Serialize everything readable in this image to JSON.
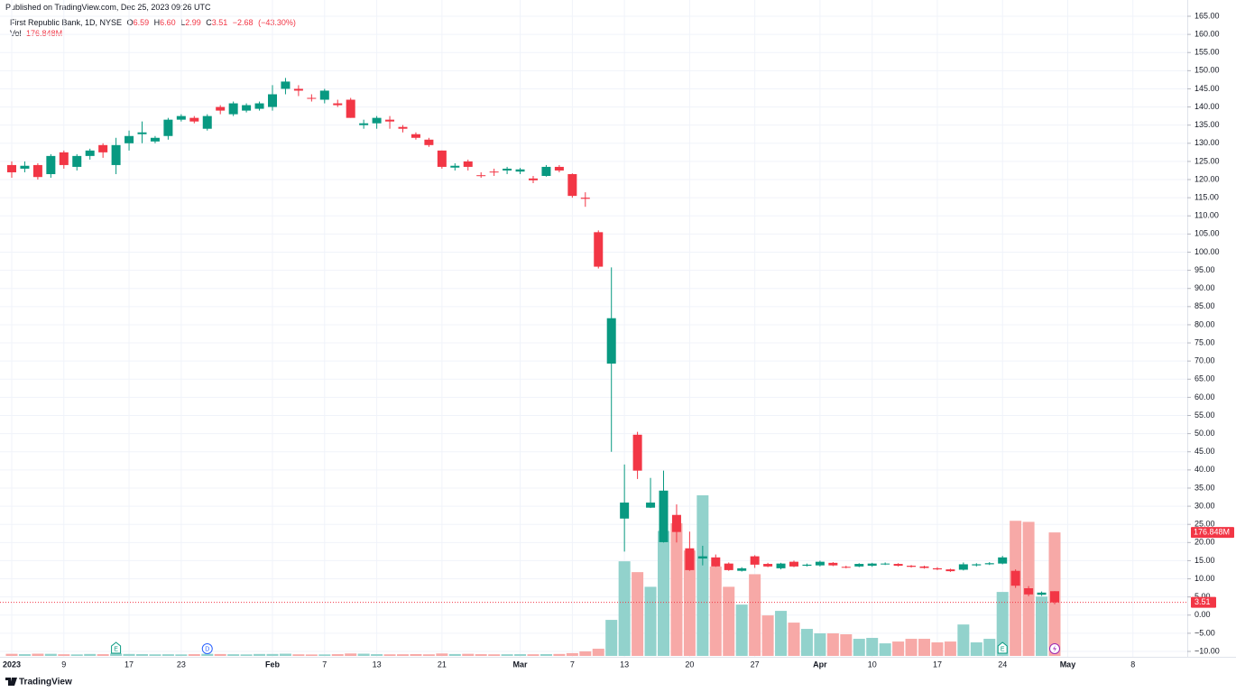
{
  "published": "Published on TradingView.com, Dec 25, 2023 09:26 UTC",
  "brand": "TradingView",
  "chart_data": {
    "type": "candlestick",
    "title": "First Republic Bank, 1D, NYSE",
    "legend_letters": [
      "O",
      "H",
      "L",
      "C"
    ],
    "legend_values": [
      {
        "value": 6.59,
        "label": "6.59"
      },
      {
        "value": 6.6,
        "label": "6.60"
      },
      {
        "value": 2.99,
        "label": "2.99"
      },
      {
        "value": 3.51,
        "label": "3.51"
      }
    ],
    "change": {
      "value": -2.68,
      "label": "−2.68"
    },
    "change_percent": {
      "value": -43.3,
      "label": "(−43.30%)"
    },
    "categories": [
      "2023",
      null,
      null,
      null,
      "9",
      null,
      null,
      null,
      null,
      "17",
      null,
      null,
      null,
      "23",
      null,
      null,
      null,
      null,
      null,
      null,
      "Feb",
      null,
      null,
      null,
      "7",
      null,
      null,
      null,
      "13",
      null,
      null,
      null,
      null,
      "21",
      null,
      null,
      null,
      null,
      null,
      "Mar",
      null,
      null,
      null,
      "7",
      null,
      null,
      null,
      "13",
      null,
      null,
      null,
      null,
      "20",
      null,
      null,
      null,
      null,
      "27",
      null,
      null,
      null,
      null,
      "Apr",
      null,
      null,
      null,
      "10",
      null,
      null,
      null,
      null,
      "17",
      null,
      null,
      null,
      null,
      "24",
      null,
      null,
      null,
      null,
      "May",
      null,
      null,
      null,
      null,
      "8"
    ],
    "open": [
      124,
      123,
      124,
      121.5,
      127.5,
      123.5,
      126.5,
      129.5,
      124,
      130,
      132.5,
      130.5,
      132,
      136.5,
      137,
      134,
      140,
      138,
      139,
      139.5,
      140,
      145,
      145,
      142.5,
      142,
      141,
      142,
      135,
      135.5,
      136.5,
      134.5,
      132.5,
      131,
      128,
      123.3,
      125,
      121.2,
      122.2,
      122.5,
      122.2,
      120.3,
      121,
      123.5,
      121.5,
      115,
      105.5,
      69.3,
      26.6,
      49.7,
      29.6,
      20.1,
      27.6,
      18.4,
      15.6,
      15.9,
      14.2,
      12.2,
      16.2,
      14.1,
      12.9,
      14.7,
      13.6,
      13.7,
      14.4,
      13.3,
      13.4,
      13.6,
      14,
      14.1,
      13.6,
      13.4,
      12.9,
      12.6,
      12.5,
      13.7,
      14,
      14.2,
      12.2,
      7.4,
      5.6,
      6.59,
      null,
      null,
      null,
      null,
      null,
      null
    ],
    "high": [
      125,
      125,
      124.5,
      127,
      128,
      127,
      128.5,
      130,
      131.5,
      133.5,
      136,
      132,
      137,
      138,
      137.5,
      138,
      140.5,
      141.5,
      141,
      141.5,
      146,
      148,
      146,
      143.5,
      145,
      142,
      142.5,
      136.5,
      137.5,
      137.5,
      135,
      133,
      131.5,
      128,
      124.5,
      125.5,
      122,
      123,
      123.5,
      123.2,
      121,
      124,
      124,
      121.7,
      116.5,
      106,
      95.8,
      41.5,
      50.5,
      37.8,
      39.8,
      30.5,
      23,
      19.1,
      16.7,
      14.5,
      13.2,
      16.5,
      14.4,
      14.4,
      15,
      14.2,
      15,
      14.6,
      13.6,
      14.3,
      14.4,
      14.5,
      14.3,
      13.8,
      13.6,
      13.2,
      12.8,
      14.5,
      14.3,
      14.6,
      16.3,
      12.6,
      8,
      6.5,
      6.6,
      null,
      null,
      null,
      null,
      null,
      null
    ],
    "low": [
      120.5,
      122,
      120,
      120.5,
      123,
      122.5,
      125.5,
      126,
      121.5,
      128,
      130,
      130,
      131,
      136,
      135.5,
      133.5,
      138,
      137.5,
      138.5,
      139,
      139,
      143.5,
      143,
      141.5,
      141,
      140,
      137,
      134,
      134,
      134,
      133,
      131,
      129,
      123,
      122.5,
      122.5,
      120.5,
      121,
      121.5,
      121.5,
      119,
      120.8,
      122,
      115,
      112.5,
      95.5,
      45,
      17.5,
      37.5,
      29.5,
      20,
      20,
      12.2,
      13.7,
      13.3,
      12.2,
      12,
      13,
      13.2,
      12.6,
      13.2,
      13.4,
      13.4,
      13.5,
      12.9,
      13.2,
      13.3,
      13.8,
      13.4,
      13.1,
      12.8,
      12.4,
      11.9,
      12.3,
      13.4,
      13.8,
      14,
      7.5,
      5.2,
      5.3,
      2.99,
      null,
      null,
      null,
      null,
      null,
      null
    ],
    "close": [
      122,
      123.8,
      120.7,
      126.5,
      124,
      126.5,
      128,
      127.5,
      129.5,
      132,
      133,
      131.5,
      136.5,
      137.5,
      136,
      137.5,
      139,
      141,
      140.5,
      141,
      143.5,
      147,
      144.5,
      142.3,
      144.5,
      140.5,
      137,
      135.5,
      137,
      136,
      134,
      131.5,
      129.5,
      123.5,
      123.8,
      123.5,
      121,
      122,
      123,
      122.8,
      119.8,
      123.5,
      122.5,
      115.5,
      114.7,
      96,
      81.8,
      31,
      39.8,
      31,
      34.3,
      22.9,
      12.4,
      16.2,
      13.4,
      12.4,
      12.9,
      13.9,
      13.4,
      14.2,
      13.4,
      13.9,
      14.7,
      13.7,
      13.1,
      14.1,
      14.2,
      14.2,
      13.6,
      13.3,
      13,
      12.6,
      12.1,
      14,
      14,
      14.3,
      15.9,
      8.1,
      5.7,
      6.2,
      3.51,
      null,
      null,
      null,
      null,
      null,
      null
    ],
    "volume": {
      "name": "Vol",
      "values": [
        3,
        2.5,
        3.2,
        3,
        2.4,
        2.2,
        2.8,
        2.5,
        3.5,
        2.8,
        2.6,
        2.3,
        2.4,
        2.2,
        2.5,
        3,
        2.7,
        2.4,
        2.2,
        2.8,
        2.8,
        3.2,
        2.3,
        2.1,
        2.2,
        2.5,
        3.5,
        3.2,
        2.5,
        2.3,
        2.4,
        2.6,
        2.3,
        3.5,
        2.7,
        3,
        2.5,
        2.3,
        2.4,
        2.5,
        2.4,
        2.6,
        2.8,
        4,
        6.5,
        10.3,
        51.6,
        135.5,
        120,
        99,
        179,
        190,
        151,
        230,
        128,
        99,
        73.5,
        117,
        58,
        64.5,
        47.7,
        38.7,
        32.3,
        32.3,
        31,
        24.5,
        25.8,
        18,
        20.6,
        24.5,
        24.5,
        19.4,
        20.6,
        45,
        19.4,
        24.5,
        91.6,
        193.5,
        192,
        85,
        176.848,
        null,
        null,
        null,
        null,
        null,
        null
      ],
      "value_labels": [
        null,
        null,
        null,
        null,
        null,
        null,
        null,
        null,
        null,
        null,
        null,
        null,
        null,
        null,
        null,
        null,
        null,
        null,
        null,
        null,
        null,
        null,
        null,
        null,
        null,
        null,
        null,
        null,
        null,
        null,
        null,
        null,
        null,
        null,
        null,
        null,
        null,
        null,
        null,
        null,
        null,
        null,
        null,
        null,
        null,
        null,
        null,
        null,
        null,
        null,
        null,
        null,
        null,
        null,
        null,
        null,
        null,
        null,
        null,
        null,
        null,
        null,
        null,
        null,
        null,
        null,
        null,
        null,
        null,
        null,
        null,
        null,
        null,
        null,
        null,
        null,
        null,
        null,
        null,
        null,
        "176.848M",
        null,
        null,
        null,
        null,
        null,
        null
      ]
    },
    "up_color": "#089981",
    "down_color": "#f23645",
    "volume_up_color": "#92d2cc",
    "volume_down_color": "#f7a9a7",
    "ylim": [
      -10,
      165
    ],
    "yticks": [
      {
        "value": 165,
        "label": "165.00"
      },
      {
        "value": 160,
        "label": "160.00"
      },
      {
        "value": 155,
        "label": "155.00"
      },
      {
        "value": 150,
        "label": "150.00"
      },
      {
        "value": 145,
        "label": "145.00"
      },
      {
        "value": 140,
        "label": "140.00"
      },
      {
        "value": 135,
        "label": "135.00"
      },
      {
        "value": 130,
        "label": "130.00"
      },
      {
        "value": 125,
        "label": "125.00"
      },
      {
        "value": 120,
        "label": "120.00"
      },
      {
        "value": 115,
        "label": "115.00"
      },
      {
        "value": 110,
        "label": "110.00"
      },
      {
        "value": 105,
        "label": "105.00"
      },
      {
        "value": 100,
        "label": "100.00"
      },
      {
        "value": 95,
        "label": "95.00"
      },
      {
        "value": 90,
        "label": "90.00"
      },
      {
        "value": 85,
        "label": "85.00"
      },
      {
        "value": 80,
        "label": "80.00"
      },
      {
        "value": 75,
        "label": "75.00"
      },
      {
        "value": 70,
        "label": "70.00"
      },
      {
        "value": 65,
        "label": "65.00"
      },
      {
        "value": 60,
        "label": "60.00"
      },
      {
        "value": 55,
        "label": "55.00"
      },
      {
        "value": 50,
        "label": "50.00"
      },
      {
        "value": 45,
        "label": "45.00"
      },
      {
        "value": 40,
        "label": "40.00"
      },
      {
        "value": 35,
        "label": "35.00"
      },
      {
        "value": 30,
        "label": "30.00"
      },
      {
        "value": 25,
        "label": "25.00"
      },
      {
        "value": 20,
        "label": "20.00"
      },
      {
        "value": 15,
        "label": "15.00"
      },
      {
        "value": 10,
        "label": "10.00"
      },
      {
        "value": 5,
        "label": "5.00"
      },
      {
        "value": 0,
        "label": "0.00"
      },
      {
        "value": -5,
        "label": "−5.00"
      },
      {
        "value": -10,
        "label": "−10.00"
      }
    ],
    "grid": true,
    "events": [
      {
        "index": 8,
        "label": "E"
      },
      {
        "index": 15,
        "label": "D"
      },
      {
        "index": 76,
        "label": "E"
      }
    ]
  }
}
